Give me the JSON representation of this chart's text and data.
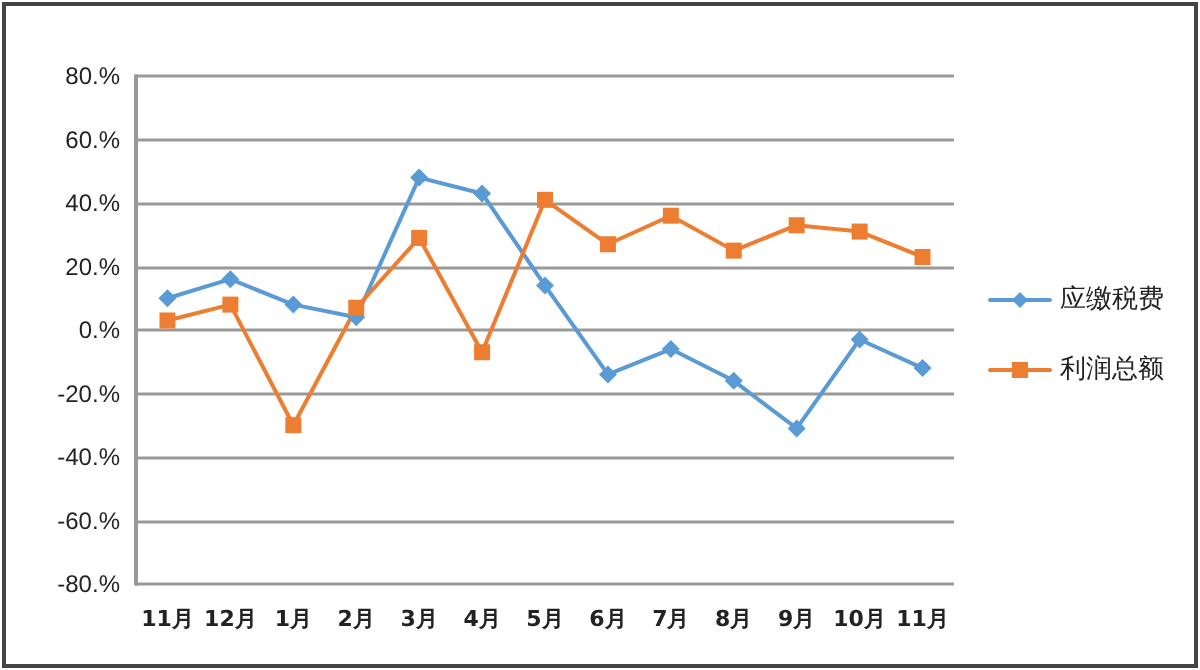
{
  "chart_data": {
    "type": "line",
    "categories": [
      "11月",
      "12月",
      "1月",
      "2月",
      "3月",
      "4月",
      "5月",
      "6月",
      "7月",
      "8月",
      "9月",
      "10月",
      "11月"
    ],
    "series": [
      {
        "name": "应缴税费",
        "color": "#5b9bd5",
        "marker": "diamond",
        "values": [
          10,
          16,
          8,
          4,
          48,
          43,
          14,
          -14,
          -6,
          -16,
          -31,
          -3,
          -12
        ]
      },
      {
        "name": "利润总额",
        "color": "#ed7d31",
        "marker": "square",
        "values": [
          3,
          8,
          -30,
          7,
          29,
          -7,
          41,
          27,
          36,
          25,
          33,
          31,
          23
        ]
      }
    ],
    "ylim": [
      -80,
      80
    ],
    "yticks": [
      {
        "value": -80,
        "label": "-80.%"
      },
      {
        "value": -60,
        "label": "-60.%"
      },
      {
        "value": -40,
        "label": "-40.%"
      },
      {
        "value": -20,
        "label": "-20.%"
      },
      {
        "value": 0,
        "label": "0.%"
      },
      {
        "value": 20,
        "label": "20.%"
      },
      {
        "value": 40,
        "label": "40.%"
      },
      {
        "value": 60,
        "label": "60.%"
      },
      {
        "value": 80,
        "label": "80.%"
      }
    ],
    "grid": "y",
    "legend": "right",
    "line_style": "solid"
  }
}
